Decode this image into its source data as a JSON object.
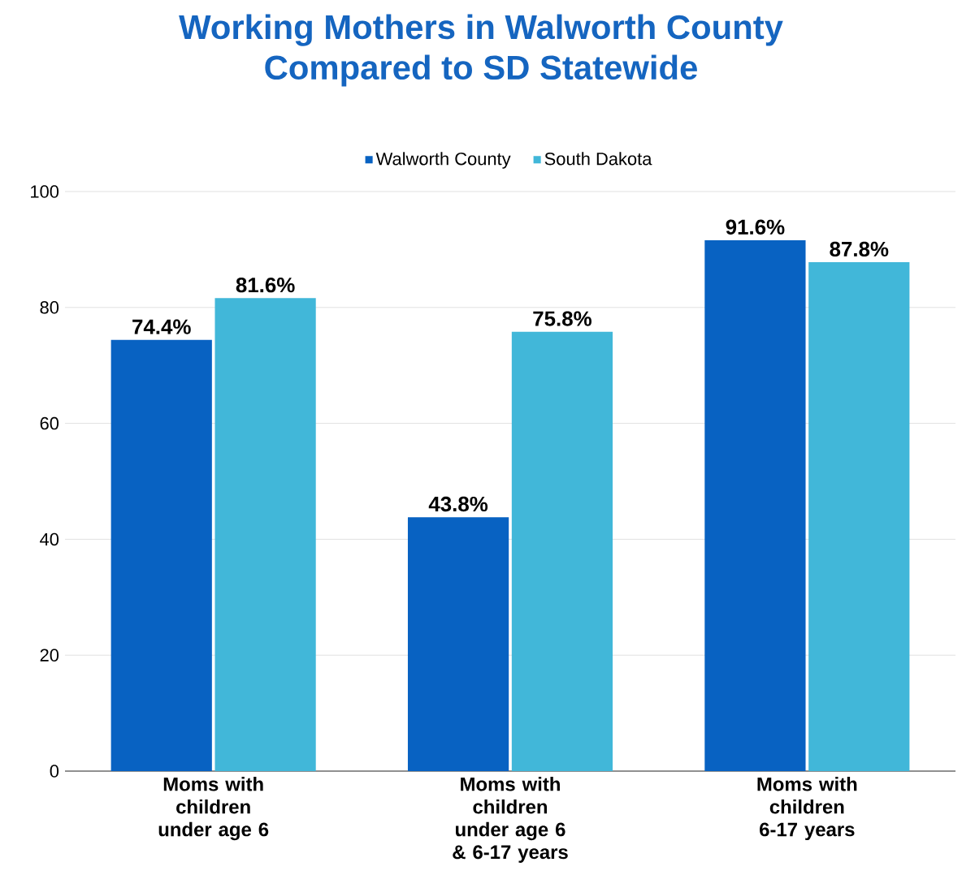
{
  "chart_data": {
    "type": "bar",
    "title": "Working Mothers in Walworth County\nCompared to SD Statewide",
    "categories": [
      "Moms with children under age 6",
      "Moms with children under age 6 & 6-17 years",
      "Moms with children 6-17 years"
    ],
    "series": [
      {
        "name": "Walworth County",
        "color": "#0862c2",
        "values": [
          74.4,
          43.8,
          91.6
        ],
        "value_labels": [
          "74.4%",
          "43.8%",
          "91.6%"
        ]
      },
      {
        "name": "South Dakota",
        "color": "#41b7d9",
        "values": [
          81.6,
          75.8,
          87.8
        ],
        "value_labels": [
          "81.6%",
          "75.8%",
          "87.8%"
        ]
      }
    ],
    "ylim": [
      0,
      100
    ],
    "yticks": [
      0,
      20,
      40,
      60,
      80,
      100
    ],
    "grid": "y",
    "legend": "top"
  }
}
